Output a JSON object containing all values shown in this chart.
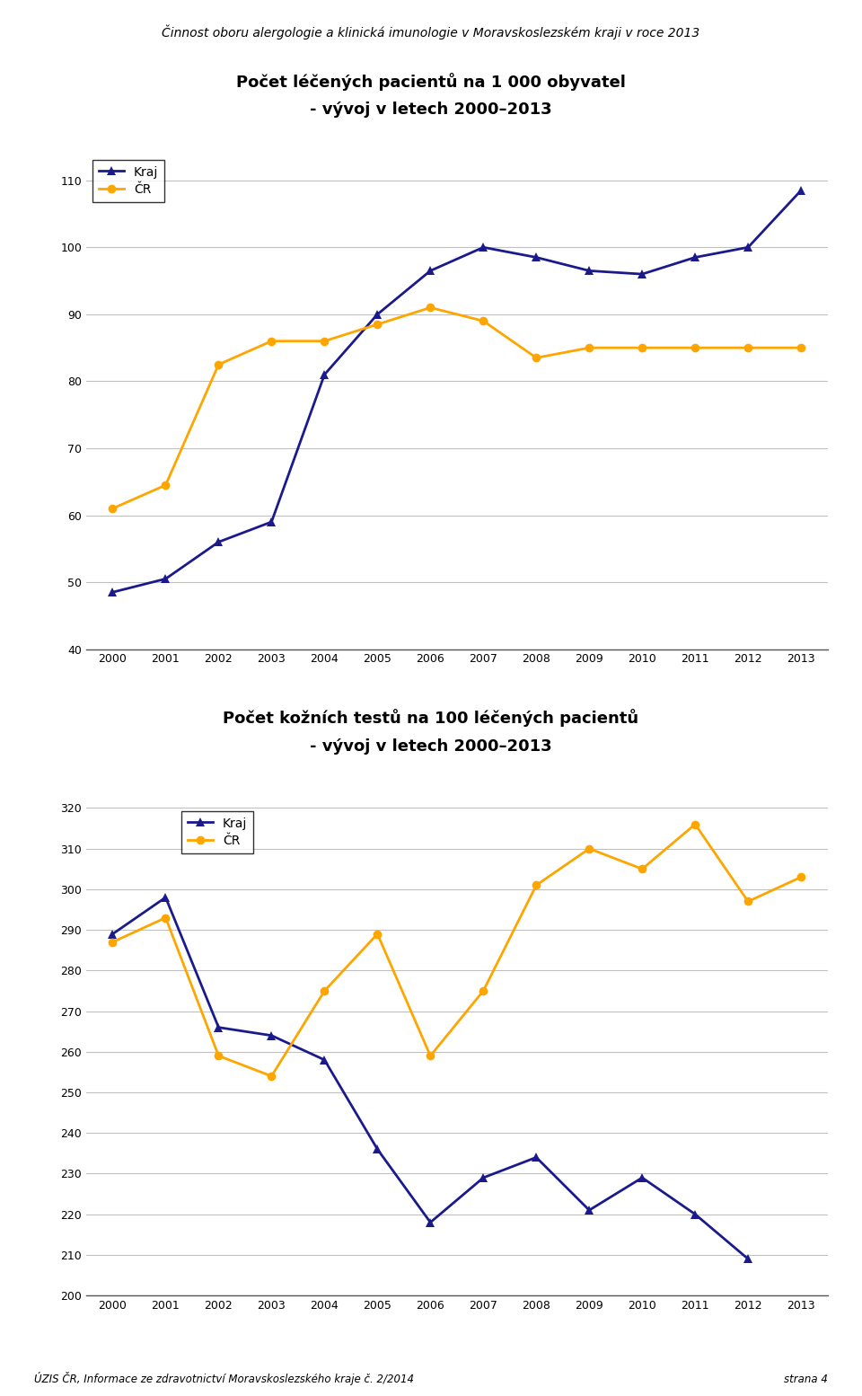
{
  "page_title": "Činnost oboru alergologie a klinická imunologie v Moravskoslezském kraji v roce 2013",
  "footer_left": "ÚZIS ČR, Informace ze zdravotnictví Moravskoslezského kraje č. 2/2014",
  "footer_right": "strana 4",
  "chart1_title_line1": "Počet léčených pacientů na 1 000 obyvatel",
  "chart1_title_line2": "- vývoj v letech 2000–2013",
  "chart1_years": [
    2000,
    2001,
    2002,
    2003,
    2004,
    2005,
    2006,
    2007,
    2008,
    2009,
    2010,
    2011,
    2012,
    2013
  ],
  "chart1_kraj": [
    48.5,
    50.5,
    56.0,
    59.0,
    81.0,
    90.0,
    96.5,
    100.0,
    98.5,
    96.5,
    96.0,
    98.5,
    100.0,
    108.5
  ],
  "chart1_cr": [
    61.0,
    64.5,
    82.5,
    86.0,
    86.0,
    88.5,
    91.0,
    89.0,
    83.5,
    85.0,
    85.0,
    85.0,
    85.0,
    85.0
  ],
  "chart1_ylim": [
    40,
    114
  ],
  "chart1_yticks": [
    40,
    50,
    60,
    70,
    80,
    90,
    100,
    110
  ],
  "chart2_title_line1": "Počet kožních testů na 100 léčených pacientů",
  "chart2_title_line2": "- vývoj v letech 2000–2013",
  "chart2_years": [
    2000,
    2001,
    2002,
    2003,
    2004,
    2005,
    2006,
    2007,
    2008,
    2009,
    2010,
    2011,
    2012,
    2013
  ],
  "chart2_kraj_years": [
    2000,
    2001,
    2002,
    2003,
    2004,
    2005,
    2006,
    2007,
    2008,
    2009,
    2010,
    2011,
    2012
  ],
  "chart2_kraj": [
    289.0,
    298.0,
    266.0,
    264.0,
    258.0,
    236.0,
    218.0,
    229.0,
    234.0,
    221.0,
    229.0,
    220.0,
    209.0
  ],
  "chart2_cr": [
    287.0,
    293.0,
    259.0,
    254.0,
    275.0,
    289.0,
    259.0,
    275.0,
    301.0,
    310.0,
    305.0,
    316.0,
    297.0,
    303.0
  ],
  "chart2_ylim": [
    200,
    322
  ],
  "chart2_yticks": [
    200,
    210,
    220,
    230,
    240,
    250,
    260,
    270,
    280,
    290,
    300,
    310,
    320
  ],
  "color_kraj": "#1a1a8c",
  "color_cr": "#FFA500",
  "legend_kraj": "Kraj",
  "legend_cr": "ČR",
  "bg_color": "#ffffff"
}
